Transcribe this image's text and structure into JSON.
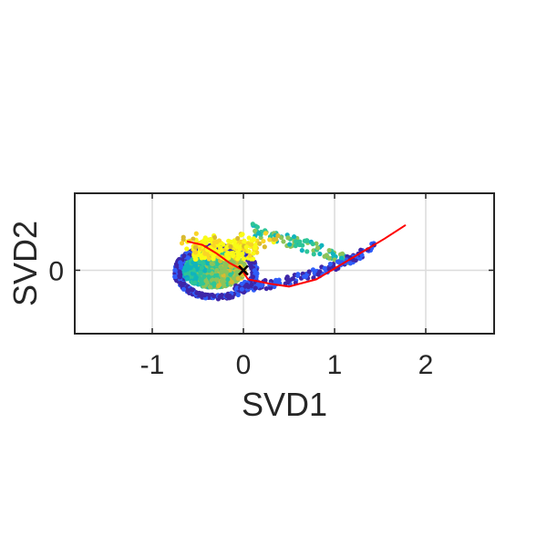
{
  "chart_data": {
    "type": "scatter",
    "xlabel": "SVD1",
    "ylabel": "SVD2",
    "xlim": [
      -1.85,
      2.75
    ],
    "ylim": [
      -0.7,
      0.85
    ],
    "xticks": [
      -1,
      0,
      1,
      2
    ],
    "xtick_labels": [
      "-1",
      "0",
      "1",
      "2"
    ],
    "yticks": [
      0
    ],
    "ytick_labels": [
      "0"
    ],
    "grid": true,
    "colormap": [
      "#3e26a8",
      "#2f5df9",
      "#1597d8",
      "#10b4bd",
      "#2ec597",
      "#8bc45a",
      "#d9ba30",
      "#fad426",
      "#f9fb15"
    ],
    "colors": {
      "trajectory": "#ff0000",
      "origin_marker": "#000000",
      "grid": "#dcdcdc",
      "axes": "#262626"
    },
    "origin_marker": {
      "x": 0,
      "y": 0,
      "symbol": "x"
    },
    "trajectory": [
      {
        "x": -0.62,
        "y": 0.32
      },
      {
        "x": -0.45,
        "y": 0.28
      },
      {
        "x": -0.3,
        "y": 0.19
      },
      {
        "x": -0.15,
        "y": 0.08
      },
      {
        "x": -0.02,
        "y": 0.01
      },
      {
        "x": 0.05,
        "y": -0.1
      },
      {
        "x": 0.3,
        "y": -0.15
      },
      {
        "x": 0.5,
        "y": -0.18
      },
      {
        "x": 0.8,
        "y": -0.1
      },
      {
        "x": 1.05,
        "y": 0.05
      },
      {
        "x": 1.3,
        "y": 0.2
      },
      {
        "x": 1.55,
        "y": 0.35
      },
      {
        "x": 1.78,
        "y": 0.5
      }
    ]
  }
}
